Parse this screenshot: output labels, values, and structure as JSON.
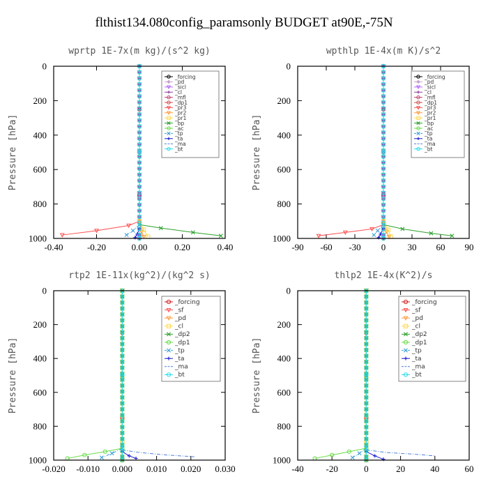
{
  "figure_title": "flthist134.080config_paramsonly  BUDGET at90E,-75N",
  "chart_data": [
    {
      "type": "line",
      "title": "wprtp  1E-7x(m kg)/(s^2 kg)",
      "ylabel": "Pressure [hPa]",
      "xlim": [
        -0.4,
        0.4
      ],
      "ylim": [
        1000,
        0
      ],
      "xticks": [
        -0.4,
        -0.2,
        0,
        0.2,
        0.4
      ],
      "xtick_labels": [
        "-0.40",
        "-0.20",
        "0.00",
        "0.20",
        "0.40"
      ],
      "yticks": [
        0,
        200,
        400,
        600,
        800,
        1000
      ],
      "ytick_labels": [
        "0",
        "200",
        "400",
        "600",
        "800",
        "1000"
      ],
      "legend_placement": "top-right",
      "series": [
        {
          "name": "_forcing",
          "color": "#000000",
          "marker": "circle",
          "x": [
            0,
            0,
            0,
            0,
            0
          ],
          "y": [
            0,
            250,
            500,
            750,
            1000
          ]
        },
        {
          "name": "_pd",
          "color": "#c8a2c8",
          "marker": "diamond",
          "x": [
            0,
            0,
            0,
            0,
            0
          ],
          "y": [
            0,
            250,
            500,
            750,
            1000
          ]
        },
        {
          "name": "_sicl",
          "color": "#b266ff",
          "marker": "triangle",
          "x": [
            0,
            0,
            0,
            0,
            0
          ],
          "y": [
            0,
            250,
            500,
            750,
            1000
          ]
        },
        {
          "name": "_cl",
          "color": "#8b3a9b",
          "marker": "plus",
          "x": [
            0,
            0,
            0,
            0,
            0
          ],
          "y": [
            0,
            250,
            500,
            750,
            1000
          ]
        },
        {
          "name": "_mfl",
          "color": "#c0406a",
          "marker": "circle",
          "x": [
            0,
            0,
            0,
            0,
            0
          ],
          "y": [
            0,
            250,
            500,
            750,
            1000
          ]
        },
        {
          "name": "_dp1",
          "color": "#d14b4b",
          "marker": "circle",
          "x": [
            0,
            0,
            0,
            0
          ],
          "y": [
            0,
            500,
            900,
            1000
          ]
        },
        {
          "name": "_pr3",
          "color": "#ff4d4d",
          "marker": "triangle",
          "x": [
            0,
            -0.05,
            -0.2,
            -0.36
          ],
          "y": [
            900,
            925,
            955,
            980
          ]
        },
        {
          "name": "_pr2",
          "color": "#ff9a3c",
          "marker": "triangle",
          "x": [
            0,
            0.01,
            0.02
          ],
          "y": [
            900,
            960,
            990
          ]
        },
        {
          "name": "_pr1",
          "color": "#ffd84d",
          "marker": "square",
          "x": [
            0,
            0.02,
            0.04
          ],
          "y": [
            900,
            950,
            990
          ]
        },
        {
          "name": "_bp",
          "color": "#2ca02c",
          "marker": "cross",
          "x": [
            0,
            0.1,
            0.25,
            0.38
          ],
          "y": [
            920,
            940,
            965,
            985
          ]
        },
        {
          "name": "_ac",
          "color": "#66dd44",
          "marker": "circle",
          "x": [
            0,
            0,
            0
          ],
          "y": [
            0,
            500,
            1000
          ]
        },
        {
          "name": "_tp",
          "color": "#3aa0d8",
          "marker": "cross",
          "x": [
            0,
            -0.03,
            -0.06
          ],
          "y": [
            920,
            955,
            980
          ]
        },
        {
          "name": "_ta",
          "color": "#1a1ad0",
          "marker": "plus",
          "x": [
            0,
            -0.01,
            -0.02
          ],
          "y": [
            940,
            975,
            995
          ]
        },
        {
          "name": "_ma",
          "color": "#4a7fd8",
          "marker": "none",
          "x": [
            0,
            0,
            0
          ],
          "y": [
            0,
            500,
            1000
          ]
        },
        {
          "name": "_bt",
          "color": "#22ddee",
          "marker": "circle",
          "x": [
            0,
            0,
            0
          ],
          "y": [
            0,
            500,
            1000
          ]
        }
      ]
    },
    {
      "type": "line",
      "title": "wpthlp  1E-4x(m K)/s^2",
      "ylabel": "Pressure [hPa]",
      "xlim": [
        -90,
        90
      ],
      "ylim": [
        1000,
        0
      ],
      "xticks": [
        -90,
        -60,
        -30,
        0,
        30,
        60,
        90
      ],
      "xtick_labels": [
        "-90",
        "-60",
        "-30",
        "0",
        "30",
        "60",
        "90"
      ],
      "yticks": [
        0,
        200,
        400,
        600,
        800,
        1000
      ],
      "ytick_labels": [
        "0",
        "200",
        "400",
        "600",
        "800",
        "1000"
      ],
      "legend_placement": "top-right",
      "series": [
        {
          "name": "_forcing",
          "color": "#000000",
          "marker": "circle",
          "x": [
            0,
            0,
            0,
            0,
            0
          ],
          "y": [
            0,
            250,
            500,
            750,
            1000
          ]
        },
        {
          "name": "_pd",
          "color": "#c8a2c8",
          "marker": "diamond",
          "x": [
            0,
            0,
            0,
            0,
            0
          ],
          "y": [
            0,
            250,
            500,
            750,
            1000
          ]
        },
        {
          "name": "_sicl",
          "color": "#b266ff",
          "marker": "triangle",
          "x": [
            0,
            0,
            0,
            0,
            0
          ],
          "y": [
            0,
            250,
            500,
            750,
            1000
          ]
        },
        {
          "name": "_cl",
          "color": "#8b3a9b",
          "marker": "plus",
          "x": [
            0,
            0,
            0,
            0,
            0
          ],
          "y": [
            0,
            250,
            500,
            750,
            1000
          ]
        },
        {
          "name": "_mfl",
          "color": "#c0406a",
          "marker": "circle",
          "x": [
            0,
            0,
            0,
            0,
            0
          ],
          "y": [
            0,
            250,
            500,
            750,
            1000
          ]
        },
        {
          "name": "_dp1",
          "color": "#d14b4b",
          "marker": "circle",
          "x": [
            0,
            0,
            0,
            0
          ],
          "y": [
            0,
            500,
            900,
            1000
          ]
        },
        {
          "name": "_pr3",
          "color": "#ff4d4d",
          "marker": "triangle",
          "x": [
            0,
            -12,
            -40,
            -68
          ],
          "y": [
            920,
            945,
            965,
            985
          ]
        },
        {
          "name": "_pr2",
          "color": "#ff9a3c",
          "marker": "triangle",
          "x": [
            0,
            3,
            6
          ],
          "y": [
            900,
            960,
            990
          ]
        },
        {
          "name": "_pr1",
          "color": "#ffd84d",
          "marker": "square",
          "x": [
            0,
            5,
            8
          ],
          "y": [
            900,
            950,
            990
          ]
        },
        {
          "name": "_bp",
          "color": "#2ca02c",
          "marker": "cross",
          "x": [
            0,
            20,
            50,
            72
          ],
          "y": [
            920,
            945,
            970,
            985
          ]
        },
        {
          "name": "_ac",
          "color": "#66dd44",
          "marker": "circle",
          "x": [
            0,
            0,
            0
          ],
          "y": [
            0,
            500,
            1000
          ]
        },
        {
          "name": "_tp",
          "color": "#3aa0d8",
          "marker": "cross",
          "x": [
            0,
            -6,
            -10
          ],
          "y": [
            920,
            955,
            980
          ]
        },
        {
          "name": "_ta",
          "color": "#1a1ad0",
          "marker": "plus",
          "x": [
            0,
            -3,
            -5
          ],
          "y": [
            940,
            975,
            995
          ]
        },
        {
          "name": "_ma",
          "color": "#4a7fd8",
          "marker": "none",
          "x": [
            0,
            0,
            0
          ],
          "y": [
            0,
            500,
            1000
          ]
        },
        {
          "name": "_bt",
          "color": "#22ddee",
          "marker": "circle",
          "x": [
            0,
            0,
            0
          ],
          "y": [
            0,
            500,
            1000
          ]
        }
      ]
    },
    {
      "type": "line",
      "title": "rtp2  1E-11x(kg^2)/(kg^2 s)",
      "ylabel": "Pressure [hPa]",
      "xlim": [
        -0.02,
        0.03
      ],
      "ylim": [
        1000,
        0
      ],
      "xticks": [
        -0.02,
        -0.01,
        0,
        0.01,
        0.02,
        0.03
      ],
      "xtick_labels": [
        "-0.020",
        "-0.010",
        "0.000",
        "0.010",
        "0.020",
        "0.030"
      ],
      "yticks": [
        0,
        200,
        400,
        600,
        800,
        1000
      ],
      "ytick_labels": [
        "0",
        "200",
        "400",
        "600",
        "800",
        "1000"
      ],
      "legend_placement": "top-right",
      "series": [
        {
          "name": "_forcing",
          "color": "#d62020",
          "marker": "circle",
          "x": [
            0,
            0,
            0,
            0,
            0
          ],
          "y": [
            0,
            250,
            500,
            750,
            1000
          ]
        },
        {
          "name": "_sf",
          "color": "#ff4d4d",
          "marker": "triangle",
          "x": [
            0,
            0,
            0,
            0,
            0
          ],
          "y": [
            0,
            250,
            500,
            750,
            1000
          ]
        },
        {
          "name": "_pd",
          "color": "#ff9a3c",
          "marker": "triangle",
          "x": [
            0,
            0,
            0,
            0,
            0
          ],
          "y": [
            0,
            250,
            500,
            750,
            1000
          ]
        },
        {
          "name": "_cl",
          "color": "#ffd84d",
          "marker": "square",
          "x": [
            0,
            0,
            0,
            0
          ],
          "y": [
            0,
            500,
            900,
            1000
          ]
        },
        {
          "name": "_dp2",
          "color": "#2ca02c",
          "marker": "cross",
          "x": [
            0,
            0,
            0
          ],
          "y": [
            0,
            500,
            1000
          ]
        },
        {
          "name": "_dp1",
          "color": "#66dd44",
          "marker": "circle",
          "x": [
            0,
            -0.005,
            -0.011,
            -0.016
          ],
          "y": [
            930,
            950,
            970,
            990
          ]
        },
        {
          "name": "_tp",
          "color": "#3aa0d8",
          "marker": "cross",
          "x": [
            0,
            -0.003,
            -0.006
          ],
          "y": [
            930,
            960,
            985
          ]
        },
        {
          "name": "_ta",
          "color": "#1a1ad0",
          "marker": "plus",
          "x": [
            0,
            0.002,
            0.004
          ],
          "y": [
            950,
            975,
            990
          ]
        },
        {
          "name": "_ma",
          "color": "#4a7fd8",
          "marker": "none",
          "x": [
            0,
            0.005,
            0.013,
            0.021
          ],
          "y": [
            940,
            955,
            970,
            980
          ]
        },
        {
          "name": "_bt",
          "color": "#22ddee",
          "marker": "circle",
          "x": [
            0,
            0,
            0
          ],
          "y": [
            0,
            500,
            1000
          ]
        }
      ]
    },
    {
      "type": "line",
      "title": "thlp2  1E-4x(K^2)/s",
      "ylabel": "Pressure [hPa]",
      "xlim": [
        -40,
        60
      ],
      "ylim": [
        1000,
        0
      ],
      "xticks": [
        -40,
        -20,
        0,
        20,
        40,
        60
      ],
      "xtick_labels": [
        "-40",
        "-20",
        "0",
        "20",
        "40",
        "60"
      ],
      "yticks": [
        0,
        200,
        400,
        600,
        800,
        1000
      ],
      "ytick_labels": [
        "0",
        "200",
        "400",
        "600",
        "800",
        "1000"
      ],
      "legend_placement": "top-right",
      "series": [
        {
          "name": "_forcing",
          "color": "#d62020",
          "marker": "circle",
          "x": [
            0,
            0,
            0,
            0,
            0
          ],
          "y": [
            0,
            250,
            500,
            750,
            1000
          ]
        },
        {
          "name": "_sf",
          "color": "#ff4d4d",
          "marker": "triangle",
          "x": [
            0,
            0,
            0,
            0,
            0
          ],
          "y": [
            0,
            250,
            500,
            750,
            1000
          ]
        },
        {
          "name": "_pd",
          "color": "#ff9a3c",
          "marker": "triangle",
          "x": [
            0,
            0,
            0,
            0,
            0
          ],
          "y": [
            0,
            250,
            500,
            750,
            1000
          ]
        },
        {
          "name": "_cl",
          "color": "#ffd84d",
          "marker": "square",
          "x": [
            0,
            0,
            0,
            0
          ],
          "y": [
            0,
            500,
            900,
            1000
          ]
        },
        {
          "name": "_dp2",
          "color": "#2ca02c",
          "marker": "cross",
          "x": [
            0,
            0,
            0
          ],
          "y": [
            0,
            500,
            1000
          ]
        },
        {
          "name": "_dp1",
          "color": "#66dd44",
          "marker": "circle",
          "x": [
            0,
            -10,
            -20,
            -30
          ],
          "y": [
            930,
            950,
            970,
            990
          ]
        },
        {
          "name": "_tp",
          "color": "#3aa0d8",
          "marker": "cross",
          "x": [
            0,
            -4,
            -8
          ],
          "y": [
            930,
            960,
            985
          ]
        },
        {
          "name": "_ta",
          "color": "#1a1ad0",
          "marker": "plus",
          "x": [
            0,
            5,
            10
          ],
          "y": [
            950,
            975,
            995
          ]
        },
        {
          "name": "_ma",
          "color": "#4a7fd8",
          "marker": "none",
          "x": [
            0,
            12,
            28,
            40
          ],
          "y": [
            940,
            955,
            965,
            975
          ]
        },
        {
          "name": "_bt",
          "color": "#22ddee",
          "marker": "circle",
          "x": [
            0,
            0,
            0
          ],
          "y": [
            0,
            500,
            1000
          ]
        }
      ]
    }
  ]
}
